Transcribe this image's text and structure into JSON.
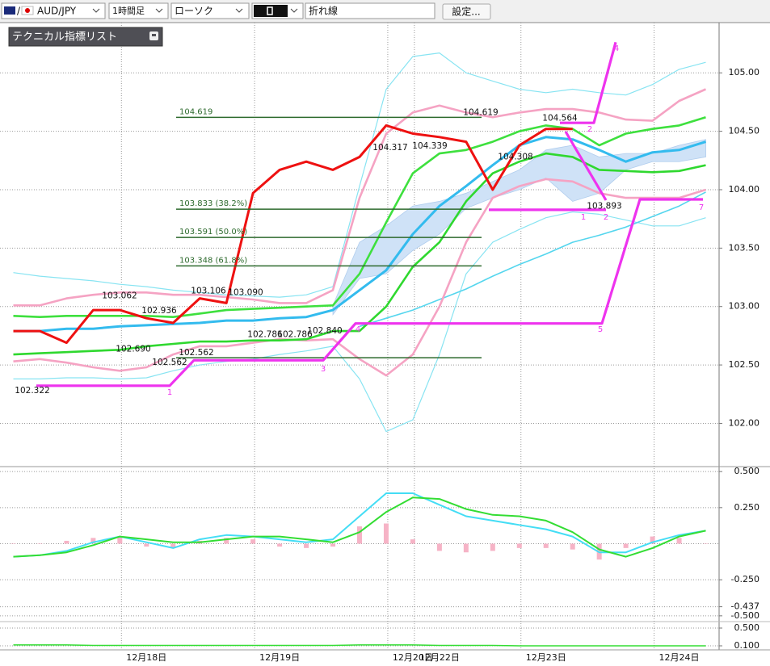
{
  "toolbar": {
    "pair_separator": "/",
    "symbol": "AUD/JPY",
    "timeframe": "1時間足",
    "chart_style": "ローソク",
    "line_style": "折れ線",
    "settings_button": "設定..."
  },
  "indicator_list": "テクニカル指標リスト",
  "chart_data": [
    {
      "type": "line",
      "categories": [
        null,
        null,
        null,
        null,
        null,
        "12月18日",
        null,
        null,
        null,
        null,
        "12月19日",
        null,
        null,
        null,
        null,
        "12月20日",
        "12月22日",
        null,
        null,
        null,
        "12月23日",
        null,
        null,
        null,
        null,
        "12月24日",
        null
      ],
      "ylim": [
        101.63,
        105.43
      ],
      "yticks": [
        {
          "value": 105.0,
          "label": "105.00"
        },
        {
          "value": 104.5,
          "label": "104.50"
        },
        {
          "value": 104.0,
          "label": "104.00"
        },
        {
          "value": 103.5,
          "label": "103.50"
        },
        {
          "value": 103.0,
          "label": "103.00"
        },
        {
          "value": 102.5,
          "label": "102.50"
        },
        {
          "value": 102.0,
          "label": "102.00"
        }
      ],
      "grid": true,
      "cloud": {
        "color": "#cfe2f7",
        "upper": [
          null,
          null,
          null,
          null,
          null,
          null,
          null,
          null,
          null,
          null,
          null,
          null,
          103.01,
          103.55,
          103.69,
          103.86,
          103.9,
          103.97,
          104.07,
          104.17,
          104.34,
          104.38,
          104.28,
          104.31,
          104.31,
          104.38,
          104.43
        ],
        "lower": [
          null,
          null,
          null,
          null,
          null,
          null,
          null,
          null,
          null,
          null,
          null,
          null,
          102.93,
          103.24,
          103.28,
          103.48,
          103.62,
          103.84,
          103.93,
          104.0,
          104.1,
          103.9,
          103.97,
          104.17,
          104.24,
          104.24,
          104.28
        ]
      },
      "series": [
        {
          "color": "#88e4f2",
          "width": 1.2,
          "values": [
            103.29,
            103.26,
            103.24,
            103.22,
            103.19,
            103.17,
            103.14,
            103.12,
            103.1,
            103.09,
            103.08,
            103.1,
            103.17,
            104.03,
            104.86,
            105.14,
            105.17,
            105.0,
            104.93,
            104.86,
            104.83,
            104.86,
            104.83,
            104.81,
            104.9,
            105.03,
            105.09
          ]
        },
        {
          "color": "#88e4f2",
          "width": 1.2,
          "values": [
            102.38,
            102.38,
            102.39,
            102.39,
            102.38,
            102.39,
            102.45,
            102.5,
            102.53,
            102.55,
            102.59,
            102.62,
            102.66,
            102.38,
            101.93,
            102.03,
            102.59,
            103.28,
            103.55,
            103.66,
            103.76,
            103.81,
            103.79,
            103.74,
            103.69,
            103.69,
            103.76
          ]
        },
        {
          "color": "#55d6ee",
          "width": 1.6,
          "values": [
            null,
            null,
            null,
            null,
            null,
            null,
            null,
            null,
            null,
            null,
            null,
            null,
            null,
            102.83,
            102.9,
            102.97,
            103.06,
            103.15,
            103.26,
            103.36,
            103.45,
            103.55,
            103.61,
            103.68,
            103.77,
            103.86,
            103.98
          ]
        },
        {
          "color": "#f5a3c3",
          "width": 2.6,
          "values": [
            103.01,
            103.01,
            103.07,
            103.1,
            103.12,
            103.12,
            103.1,
            103.1,
            103.08,
            103.06,
            103.03,
            103.03,
            103.14,
            103.93,
            104.48,
            104.66,
            104.72,
            104.66,
            104.62,
            104.66,
            104.69,
            104.69,
            104.66,
            104.6,
            104.59,
            104.76,
            104.86
          ]
        },
        {
          "color": "#f5a3c3",
          "width": 2.6,
          "values": [
            102.53,
            102.55,
            102.52,
            102.48,
            102.45,
            102.48,
            102.59,
            102.66,
            102.66,
            102.69,
            102.72,
            102.71,
            102.72,
            102.55,
            102.41,
            102.59,
            103.0,
            103.55,
            103.93,
            104.03,
            104.09,
            104.07,
            103.97,
            103.93,
            103.93,
            103.93,
            104.0
          ]
        },
        {
          "color": "#2fd82f",
          "width": 2.6,
          "values": [
            102.59,
            102.6,
            102.61,
            102.62,
            102.63,
            102.66,
            102.68,
            102.7,
            102.7,
            102.71,
            102.71,
            102.72,
            102.79,
            102.79,
            103.0,
            103.34,
            103.55,
            103.9,
            104.14,
            104.24,
            104.31,
            104.28,
            104.17,
            104.16,
            104.15,
            104.16,
            104.21
          ]
        },
        {
          "color": "#3ee03e",
          "width": 2.6,
          "values": [
            102.92,
            102.91,
            102.92,
            102.92,
            102.92,
            102.92,
            102.91,
            102.94,
            102.97,
            102.98,
            102.99,
            103.0,
            103.01,
            103.28,
            103.72,
            104.14,
            104.31,
            104.34,
            104.41,
            104.5,
            104.55,
            104.52,
            104.38,
            104.48,
            104.52,
            104.55,
            104.62
          ]
        },
        {
          "color": "#33bbee",
          "width": 3,
          "values": [
            102.79,
            102.79,
            102.81,
            102.81,
            102.83,
            102.84,
            102.85,
            102.86,
            102.88,
            102.88,
            102.9,
            102.91,
            102.97,
            103.14,
            103.31,
            103.62,
            103.86,
            104.03,
            104.21,
            104.38,
            104.45,
            104.43,
            104.34,
            104.24,
            104.32,
            104.34,
            104.41
          ]
        },
        {
          "color": "#ee1111",
          "width": 3,
          "values": [
            102.79,
            102.79,
            102.69,
            102.97,
            102.97,
            102.9,
            102.86,
            103.07,
            103.03,
            103.97,
            104.17,
            104.24,
            104.17,
            104.28,
            104.55,
            104.48,
            104.45,
            104.41,
            104.0,
            104.38,
            104.52,
            104.52,
            null,
            null,
            null,
            null,
            null
          ]
        }
      ],
      "fib_color": "#2d6a2d",
      "fib_levels": [
        {
          "value": 104.619,
          "label": "104.619"
        },
        {
          "value": 103.833,
          "label": "103.833 (38.2%)"
        },
        {
          "value": 103.591,
          "label": "103.591 (50.0%)"
        },
        {
          "value": 103.348,
          "label": "103.348 (61.8%)"
        }
      ],
      "fib_base": 102.562,
      "price_labels": [
        {
          "value": 102.322,
          "label": "102.322"
        },
        {
          "value": 102.69,
          "label": "102.690"
        },
        {
          "value": 102.562,
          "label": "102.562"
        },
        {
          "value": 102.562,
          "label": "102.562"
        },
        {
          "value": 103.062,
          "label": "103.062"
        },
        {
          "value": 102.936,
          "label": "102.936"
        },
        {
          "value": 103.106,
          "label": "103.106"
        },
        {
          "value": 103.09,
          "label": "103.090"
        },
        {
          "value": 102.786,
          "label": "102.786"
        },
        {
          "value": 102.786,
          "label": "102.786"
        },
        {
          "value": 102.84,
          "label": "102.840"
        },
        {
          "value": 104.317,
          "label": "104.317"
        },
        {
          "value": 104.339,
          "label": "104.339"
        },
        {
          "value": 104.619,
          "label": "104.619"
        },
        {
          "value": 104.308,
          "label": "104.308"
        },
        {
          "value": 104.564,
          "label": "104.564"
        },
        {
          "value": 103.893,
          "label": "103.893"
        }
      ],
      "zigzag_color": "#ee33ee",
      "zigzag": [
        {
          "values": [
            102.322,
            102.322,
            102.54,
            102.54,
            102.855,
            102.855,
            103.917,
            103.917
          ]
        },
        {
          "values": [
            104.572,
            104.572,
            105.262
          ]
        },
        {
          "values": [
            104.497,
            103.91
          ]
        },
        {
          "values": [
            103.828,
            103.828
          ]
        }
      ],
      "wave_labels": [
        "1",
        "3",
        "4",
        "5",
        "4",
        "1",
        "2",
        "2",
        "7"
      ]
    },
    {
      "type": "combo",
      "ylim": [
        -0.54,
        0.54
      ],
      "yticks": [
        {
          "value": 0.5,
          "label": "0.500"
        },
        {
          "value": 0.25,
          "label": "0.250"
        },
        {
          "value": -0.25,
          "label": "-0.250"
        },
        {
          "value": -0.437,
          "label": "-0.437"
        },
        {
          "value": -0.5,
          "label": "-0.500"
        }
      ],
      "grid": true,
      "series": [
        {
          "kind": "bar",
          "color": "#f6b3c6",
          "values": [
            0,
            0,
            0.02,
            0.04,
            0.05,
            -0.02,
            -0.03,
            0.02,
            0.04,
            0.03,
            -0.02,
            -0.03,
            -0.02,
            0.12,
            0.14,
            0.03,
            -0.05,
            -0.06,
            -0.05,
            -0.03,
            -0.03,
            -0.04,
            -0.11,
            -0.03,
            0.05,
            0.04,
            0
          ]
        },
        {
          "kind": "line",
          "color": "#44ddf5",
          "values": [
            -0.09,
            -0.08,
            -0.05,
            0.01,
            0.05,
            0.01,
            -0.03,
            0.03,
            0.06,
            0.05,
            0.03,
            0.01,
            0.03,
            0.19,
            0.35,
            0.35,
            0.27,
            0.19,
            0.16,
            0.13,
            0.1,
            0.05,
            -0.06,
            -0.06,
            0.01,
            0.06,
            0.09
          ]
        },
        {
          "kind": "line",
          "color": "#33dd33",
          "values": [
            -0.09,
            -0.08,
            -0.06,
            -0.01,
            0.05,
            0.03,
            0.01,
            0.01,
            0.03,
            0.05,
            0.05,
            0.03,
            0.01,
            0.08,
            0.22,
            0.32,
            0.31,
            0.24,
            0.2,
            0.19,
            0.16,
            0.08,
            -0.04,
            -0.09,
            -0.03,
            0.05,
            0.09
          ]
        }
      ]
    },
    {
      "type": "line",
      "ylim": [
        0,
        0.6
      ],
      "yticks": [
        {
          "value": 0.5,
          "label": "0.500"
        },
        {
          "value": 0.1,
          "label": "0.100"
        }
      ],
      "grid": true,
      "series": [
        {
          "color": "#33dd33",
          "width": 1.5,
          "values": [
            0.12,
            0.12,
            0.12,
            0.11,
            0.11,
            0.11,
            0.11,
            0.11,
            0.11,
            0.11,
            0.11,
            0.11,
            0.11,
            0.12,
            0.12,
            0.12,
            0.11,
            0.11,
            0.11,
            0.1,
            0.1,
            0.1,
            0.1,
            0.1,
            0.1,
            0.1,
            0.1
          ]
        }
      ]
    }
  ]
}
